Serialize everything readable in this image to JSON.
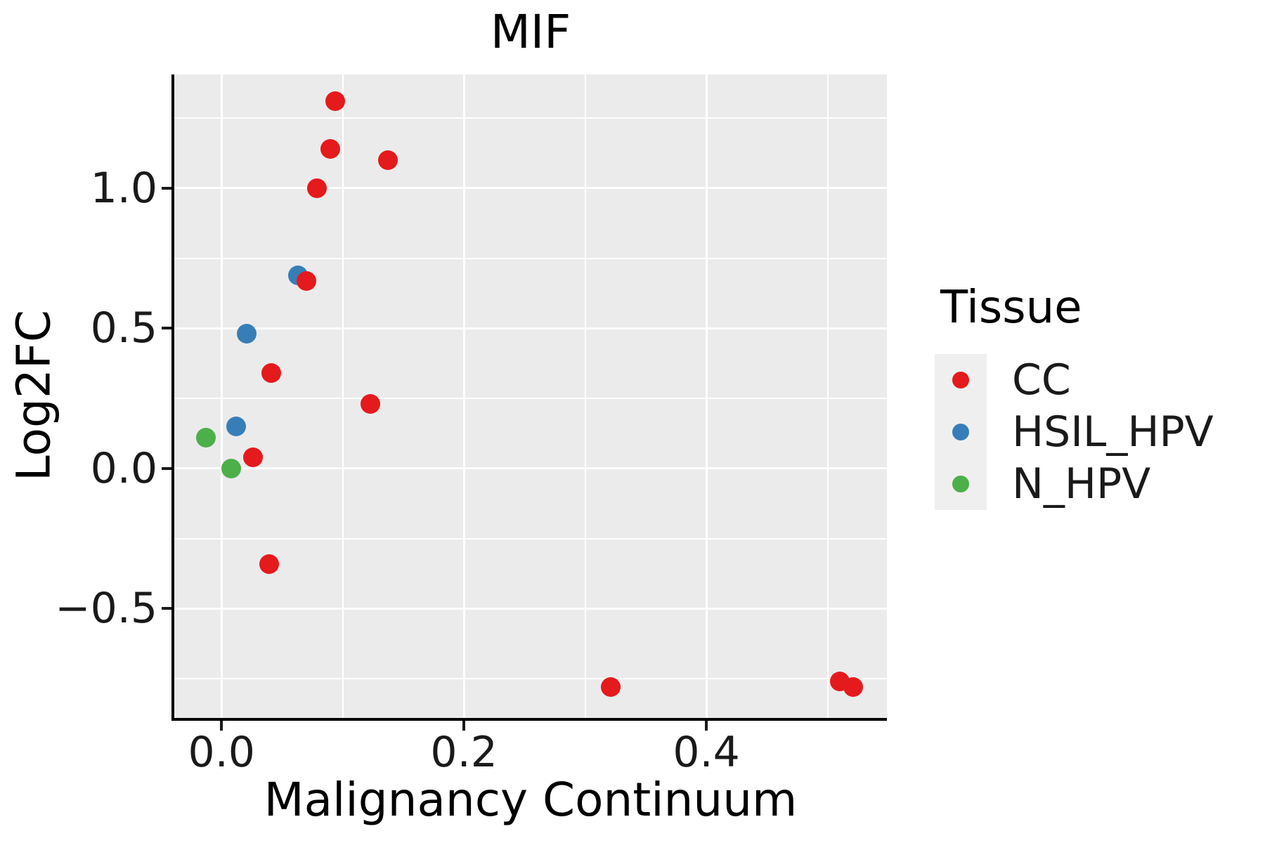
{
  "title": "MIF",
  "axes": {
    "x": {
      "label": "Malignancy Continuum",
      "ticks": [
        {
          "value": 0.0,
          "label": "0.0"
        },
        {
          "value": 0.2,
          "label": "0.2"
        },
        {
          "value": 0.4,
          "label": "0.4"
        }
      ]
    },
    "y": {
      "label": "Log2FC",
      "ticks": [
        {
          "value": -0.5,
          "label": "−0.5"
        },
        {
          "value": 0.0,
          "label": "0.0"
        },
        {
          "value": 0.5,
          "label": "0.5"
        },
        {
          "value": 1.0,
          "label": "1.0"
        }
      ]
    }
  },
  "legend": {
    "title": "Tissue",
    "items": [
      {
        "label": "CC",
        "color": "#E41A1C"
      },
      {
        "label": "HSIL_HPV",
        "color": "#377EB8"
      },
      {
        "label": "N_HPV",
        "color": "#4DAF4A"
      }
    ]
  },
  "colors": {
    "panel_background": "#EBEBEB",
    "gridline": "#FFFFFF",
    "axis_line": "#000000",
    "legend_key_background": "#EFEFEF"
  },
  "chart_data": {
    "type": "scatter",
    "title": "MIF",
    "xlabel": "Malignancy Continuum",
    "ylabel": "Log2FC",
    "xlim": [
      -0.039,
      0.549
    ],
    "ylim": [
      -0.89,
      1.406
    ],
    "x_ticks": [
      0.0,
      0.2,
      0.4
    ],
    "y_ticks": [
      -0.5,
      0.0,
      0.5,
      1.0
    ],
    "x_gridlines": {
      "major": [
        0.0,
        0.2,
        0.4
      ],
      "minor": [
        0.1,
        0.3,
        0.5
      ]
    },
    "y_gridlines": {
      "major": [
        -0.5,
        0.0,
        0.5,
        1.0
      ],
      "minor": [
        -0.75,
        -0.25,
        0.25,
        0.75,
        1.25
      ]
    },
    "grid": true,
    "legend_position": "right",
    "series": [
      {
        "name": "CC",
        "color": "#E41A1C",
        "points": [
          [
            0.094,
            1.31
          ],
          [
            0.09,
            1.14
          ],
          [
            0.137,
            1.1
          ],
          [
            0.079,
            1.0
          ],
          [
            0.07,
            0.67
          ],
          [
            0.041,
            0.34
          ],
          [
            0.123,
            0.23
          ],
          [
            0.026,
            0.04
          ],
          [
            0.039,
            -0.34
          ],
          [
            0.321,
            -0.78
          ],
          [
            0.51,
            -0.76
          ],
          [
            0.521,
            -0.78
          ]
        ]
      },
      {
        "name": "HSIL_HPV",
        "color": "#377EB8",
        "points": [
          [
            0.063,
            0.69
          ],
          [
            0.021,
            0.48
          ],
          [
            0.012,
            0.15
          ]
        ]
      },
      {
        "name": "N_HPV",
        "color": "#4DAF4A",
        "points": [
          [
            -0.013,
            0.11
          ],
          [
            0.008,
            0.0
          ]
        ]
      }
    ]
  }
}
